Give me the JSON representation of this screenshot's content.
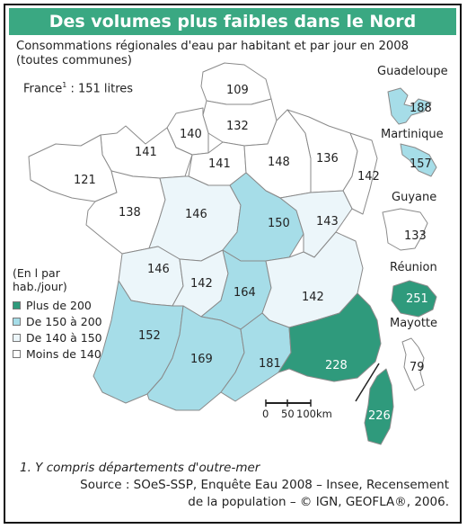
{
  "title": "Des volumes plus faibles dans le Nord",
  "subtitle": "Consommations régionales d'eau par habitant et par jour en 2008 (toutes communes)",
  "france_total": {
    "label": "France",
    "sup": "1",
    "value": ": 151 litres"
  },
  "legend": {
    "title_line1": "(En l par",
    "title_line2": "hab./jour)",
    "items": [
      {
        "label": "Plus de 200",
        "color": "#2f9a7c"
      },
      {
        "label": "De 150 à 200",
        "color": "#a6dde8"
      },
      {
        "label": "De 140 à 150",
        "color": "#ecf6fa"
      },
      {
        "label": "Moins de 140",
        "color": "#ffffff"
      }
    ]
  },
  "regions": [
    {
      "name": "Nord-Pas-de-Calais",
      "value": "109"
    },
    {
      "name": "Haute-Normandie",
      "value": "140"
    },
    {
      "name": "Picardie",
      "value": "132"
    },
    {
      "name": "Basse-Normandie",
      "value": "141"
    },
    {
      "name": "Ile-de-France",
      "value": "141"
    },
    {
      "name": "Champagne-Ardenne",
      "value": "148"
    },
    {
      "name": "Lorraine",
      "value": "136"
    },
    {
      "name": "Alsace",
      "value": "142"
    },
    {
      "name": "Bretagne",
      "value": "121"
    },
    {
      "name": "Pays de la Loire",
      "value": "138"
    },
    {
      "name": "Centre",
      "value": "146"
    },
    {
      "name": "Bourgogne",
      "value": "150"
    },
    {
      "name": "Franche-Comte",
      "value": "143"
    },
    {
      "name": "Poitou-Charentes",
      "value": "146"
    },
    {
      "name": "Limousin",
      "value": "142"
    },
    {
      "name": "Auvergne",
      "value": "164"
    },
    {
      "name": "Rhone-Alpes",
      "value": "142"
    },
    {
      "name": "Aquitaine",
      "value": "152"
    },
    {
      "name": "Midi-Pyrenees",
      "value": "169"
    },
    {
      "name": "Languedoc-Roussillon",
      "value": "181"
    },
    {
      "name": "Provence-Alpes-Cote d'Azur",
      "value": "228"
    },
    {
      "name": "Corse",
      "value": "226"
    }
  ],
  "overseas": [
    {
      "name": "Guadeloupe",
      "value": "188"
    },
    {
      "name": "Martinique",
      "value": "157"
    },
    {
      "name": "Guyane",
      "value": "133"
    },
    {
      "name": "Réunion",
      "value": "251"
    },
    {
      "name": "Mayotte",
      "value": "79"
    }
  ],
  "scale": {
    "zero": "0",
    "mid": "50",
    "end": "100km"
  },
  "footnote": "1. Y compris départements d'outre-mer",
  "source_line1": "Source : SOeS-SSP, Enquête Eau 2008 – Insee, Recensement",
  "source_line2": "de la population – © IGN, GEOFLA®, 2006."
}
